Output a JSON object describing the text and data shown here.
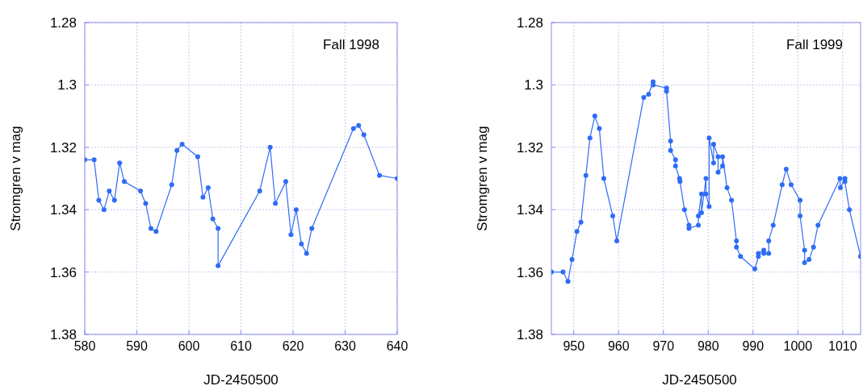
{
  "chart_data": [
    {
      "type": "line",
      "title": "Fall 1998",
      "xlabel": "JD-2450500",
      "ylabel": "Stromgren v mag",
      "xlim": [
        580,
        640
      ],
      "xticks": [
        580,
        590,
        600,
        610,
        620,
        630,
        640
      ],
      "ylim": [
        1.38,
        1.28
      ],
      "yticks": [
        1.28,
        1.3,
        1.32,
        1.34,
        1.36,
        1.38
      ],
      "grid": true,
      "marker": "circle",
      "line_style": "solid",
      "series": [
        {
          "color": "#2f6cf5",
          "x": [
            580,
            581.8,
            582.7,
            583.7,
            584.7,
            585.7,
            586.7,
            587.6,
            590.7,
            591.7,
            592.7,
            593.7,
            596.7,
            597.7,
            598.7,
            601.7,
            602.7,
            603.7,
            604.6,
            605.6,
            605.6,
            613.6,
            615.6,
            616.6,
            618.6,
            619.6,
            620.6,
            621.6,
            622.6,
            623.6,
            631.6,
            632.6,
            633.6,
            636.6,
            640
          ],
          "values": [
            1.324,
            1.324,
            1.337,
            1.34,
            1.334,
            1.337,
            1.325,
            1.331,
            1.334,
            1.338,
            1.346,
            1.347,
            1.332,
            1.321,
            1.319,
            1.323,
            1.336,
            1.333,
            1.343,
            1.346,
            1.358,
            1.334,
            1.32,
            1.338,
            1.331,
            1.348,
            1.34,
            1.351,
            1.354,
            1.346,
            1.314,
            1.313,
            1.316,
            1.329,
            1.33
          ]
        }
      ]
    },
    {
      "type": "line",
      "title": "Fall 1999",
      "xlabel": "JD-2450500",
      "ylabel": "Stromgren v mag",
      "xlim": [
        945,
        1014
      ],
      "xticks": [
        950,
        960,
        970,
        980,
        990,
        1000,
        1010
      ],
      "ylim": [
        1.38,
        1.28
      ],
      "yticks": [
        1.28,
        1.3,
        1.32,
        1.34,
        1.36,
        1.38
      ],
      "grid": true,
      "marker": "circle",
      "line_style": "solid",
      "series": [
        {
          "color": "#2f6cf5",
          "x": [
            945,
            947.6,
            948.7,
            949.6,
            950.7,
            951.6,
            952.7,
            953.6,
            954.7,
            955.7,
            956.7,
            958.7,
            959.6,
            965.6,
            966.7,
            967.7,
            967.7,
            970.7,
            970.7,
            971.6,
            971.6,
            972.7,
            972.7,
            973.6,
            973.7,
            974.7,
            975.7,
            975.7,
            977.8,
            977.8,
            978.5,
            978.5,
            979.5,
            979.5,
            980.2,
            980.2,
            981.2,
            981.2,
            982.2,
            982.2,
            983.2,
            983.2,
            984.2,
            985.2,
            986.3,
            986.3,
            987.2,
            990.4,
            991.2,
            991.2,
            992.4,
            992.4,
            993.5,
            993.5,
            994.5,
            996.5,
            997.4,
            998.5,
            1000.5,
            1000.5,
            1001.5,
            1001.5,
            1002.5,
            1003.5,
            1004.5,
            1009.4,
            1009.5,
            1010.5,
            1010.5,
            1011.5,
            1014
          ],
          "values": [
            1.36,
            1.36,
            1.363,
            1.356,
            1.347,
            1.344,
            1.329,
            1.317,
            1.31,
            1.314,
            1.33,
            1.342,
            1.35,
            1.304,
            1.303,
            1.299,
            1.3,
            1.301,
            1.302,
            1.318,
            1.321,
            1.324,
            1.326,
            1.33,
            1.331,
            1.34,
            1.345,
            1.346,
            1.345,
            1.342,
            1.335,
            1.341,
            1.33,
            1.335,
            1.339,
            1.317,
            1.325,
            1.319,
            1.323,
            1.328,
            1.326,
            1.323,
            1.333,
            1.337,
            1.35,
            1.352,
            1.355,
            1.359,
            1.355,
            1.354,
            1.353,
            1.354,
            1.354,
            1.35,
            1.345,
            1.332,
            1.327,
            1.332,
            1.337,
            1.342,
            1.353,
            1.357,
            1.356,
            1.352,
            1.345,
            1.33,
            1.333,
            1.33,
            1.331,
            1.34,
            1.355
          ]
        }
      ]
    }
  ]
}
